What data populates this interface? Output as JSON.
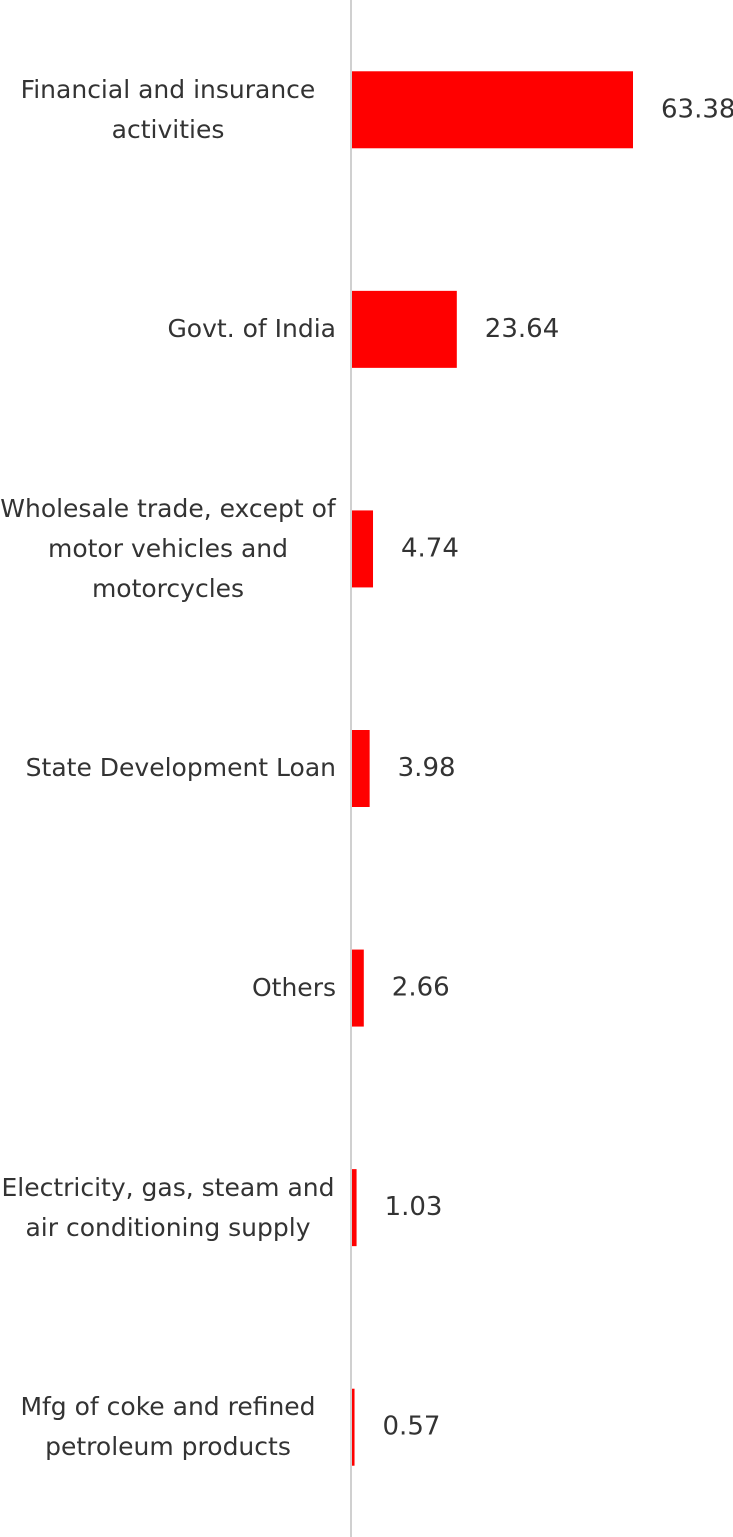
{
  "chart_data": {
    "type": "bar",
    "orientation": "horizontal",
    "categories": [
      "Financial and insurance activities",
      "Govt. of India",
      "Wholesale trade, except of motor vehicles and motorcycles",
      "State Development Loan",
      "Others",
      "Electricity, gas, steam and air conditioning supply",
      "Mfg of coke and refined petroleum products"
    ],
    "values": [
      63.38,
      23.64,
      4.74,
      3.98,
      2.66,
      1.03,
      0.57
    ],
    "color": "#ff0000"
  }
}
